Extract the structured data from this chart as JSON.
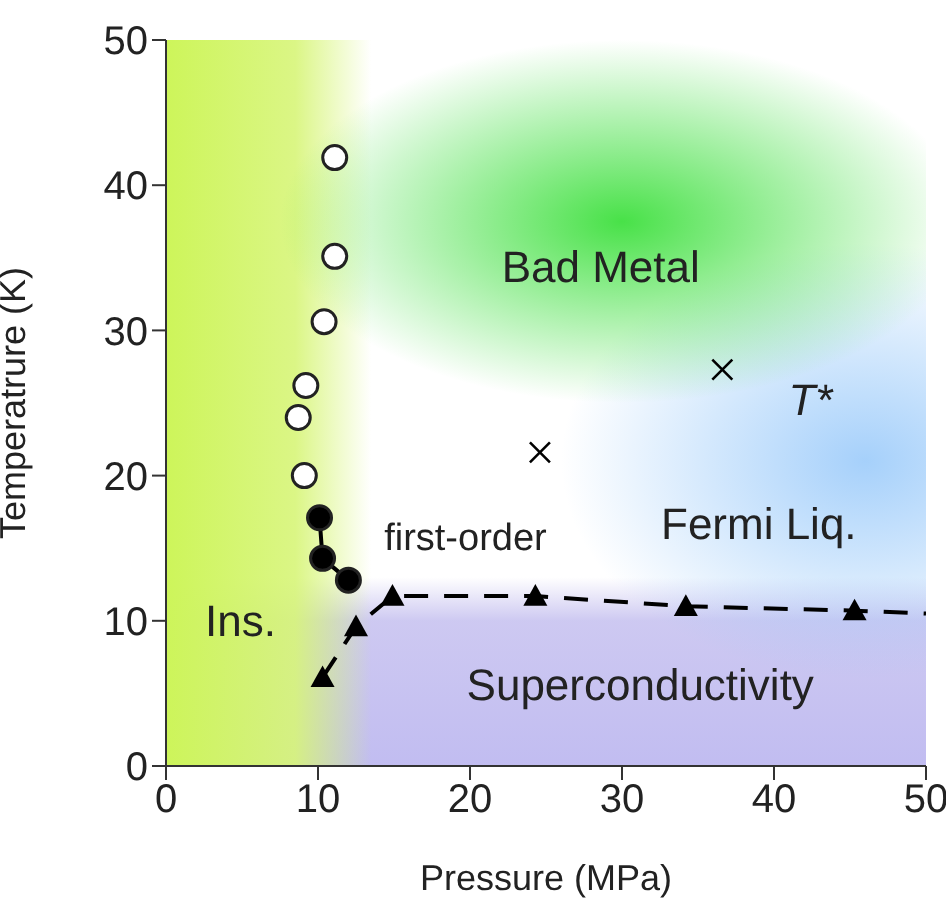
{
  "chart_data": {
    "type": "scatter",
    "xlabel": "Pressure (MPa)",
    "ylabel": "Temperatrure (K)",
    "xlim": [
      0,
      50
    ],
    "xticks": [
      0,
      10,
      20,
      30,
      40,
      50
    ],
    "ylim": [
      0,
      50
    ],
    "yticks": [
      0,
      10,
      20,
      30,
      40,
      50
    ],
    "grid": false,
    "legend": false,
    "series": [
      {
        "marker": "circle",
        "color": "#ffffff",
        "x": [
          11.1,
          11.1,
          10.4,
          9.2,
          8.7,
          9.1
        ],
        "values": [
          41.9,
          35.1,
          30.6,
          26.2,
          24.0,
          20.0
        ]
      },
      {
        "type": "line",
        "marker": "circle",
        "line_style": "solid",
        "color": "#000000",
        "x": [
          10.1,
          10.3,
          12.0
        ],
        "values": [
          17.1,
          14.3,
          12.8
        ]
      },
      {
        "type": "line",
        "marker": "none",
        "line_style": "dashed",
        "color": "#000000",
        "x": [
          10.3,
          12.5,
          14.9,
          24.3,
          34.2,
          45.3,
          50
        ],
        "values": [
          6.1,
          9.6,
          11.7,
          11.7,
          11.0,
          10.7,
          10.5
        ]
      },
      {
        "marker": "triangle",
        "color": "#000000",
        "x": [
          10.3,
          12.5,
          14.9,
          24.3,
          34.2,
          45.3
        ],
        "values": [
          6.1,
          9.6,
          11.7,
          11.7,
          11.0,
          10.7
        ]
      },
      {
        "marker": "cross",
        "color": "#000000",
        "x": [
          24.6,
          36.6
        ],
        "values": [
          21.6,
          27.3
        ]
      }
    ],
    "annotations": [
      "Bad Metal",
      "T*",
      "Fermi Liq.",
      "first-order",
      "Ins.",
      "Superconductivity"
    ]
  }
}
